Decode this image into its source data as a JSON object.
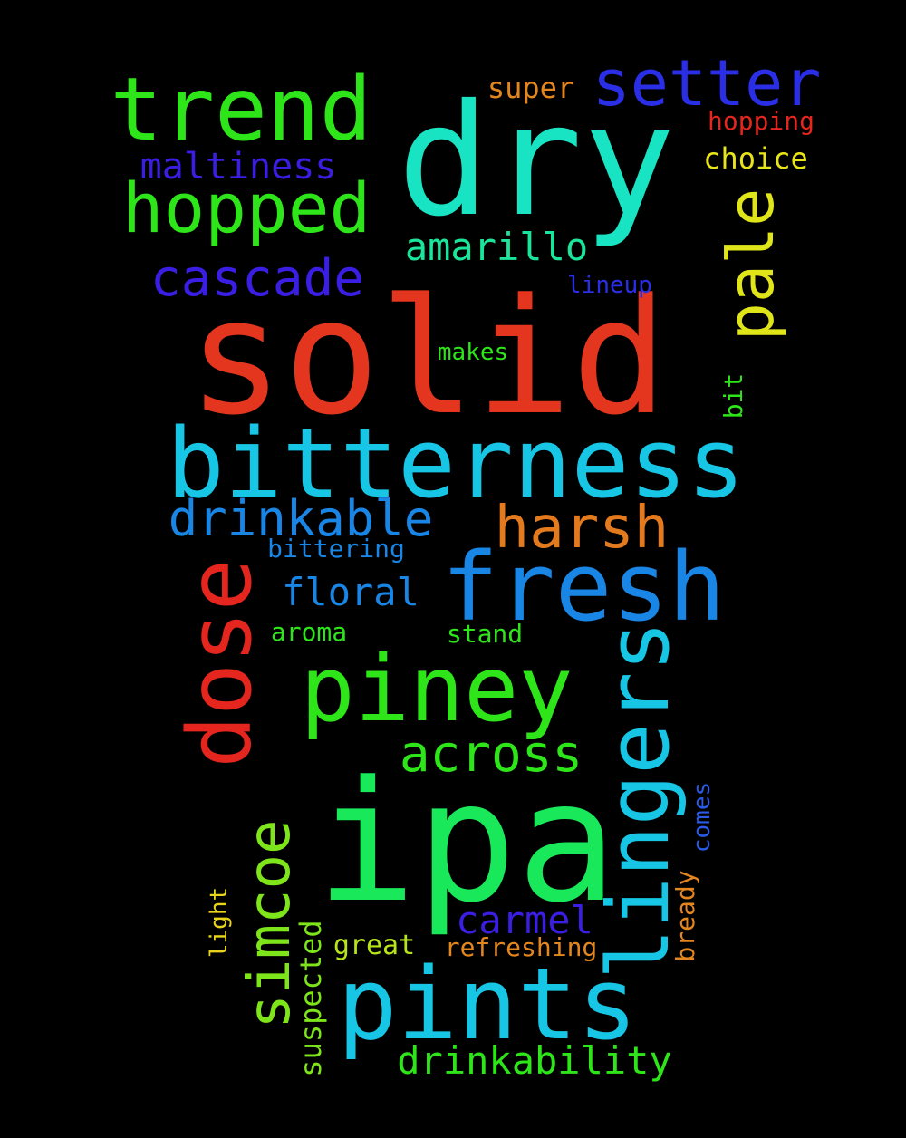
{
  "words": [
    {
      "text": "solid",
      "color": "#e4361e"
    },
    {
      "text": "dry",
      "color": "#18e3c2"
    },
    {
      "text": "ipa",
      "color": "#18e85a"
    },
    {
      "text": "bitterness",
      "color": "#17c6e4"
    },
    {
      "text": "pints",
      "color": "#17c6e4"
    },
    {
      "text": "trend",
      "color": "#2ee51a"
    },
    {
      "text": "fresh",
      "color": "#1985e4"
    },
    {
      "text": "piney",
      "color": "#2ee51a"
    },
    {
      "text": "dose",
      "color": "#e4261e"
    },
    {
      "text": "lingers",
      "color": "#17c6e4"
    },
    {
      "text": "setter",
      "color": "#2a2fe6"
    },
    {
      "text": "hopped",
      "color": "#2ee51a"
    },
    {
      "text": "pale",
      "color": "#e0e51a"
    },
    {
      "text": "harsh",
      "color": "#e47a1e"
    },
    {
      "text": "simcoe",
      "color": "#7ee51a"
    },
    {
      "text": "cascade",
      "color": "#3a1ee4"
    },
    {
      "text": "across",
      "color": "#2ee51a"
    },
    {
      "text": "drinkable",
      "color": "#1985e4"
    },
    {
      "text": "amarillo",
      "color": "#1ae59a"
    },
    {
      "text": "drinkability",
      "color": "#2ee51a"
    },
    {
      "text": "carmel",
      "color": "#3a1ee4"
    },
    {
      "text": "floral",
      "color": "#1985e4"
    },
    {
      "text": "maltiness",
      "color": "#3a1ee4"
    },
    {
      "text": "super",
      "color": "#e4861e"
    },
    {
      "text": "choice",
      "color": "#e8e41a"
    },
    {
      "text": "suspected",
      "color": "#7ee51a"
    },
    {
      "text": "hopping",
      "color": "#e4261e"
    },
    {
      "text": "refreshing",
      "color": "#e4861e"
    },
    {
      "text": "great",
      "color": "#b8e51a"
    },
    {
      "text": "breadу",
      "color": "#e4861e"
    },
    {
      "text": "bittering",
      "color": "#1985e4"
    },
    {
      "text": "stand",
      "color": "#2ee51a"
    },
    {
      "text": "aroma",
      "color": "#2ee51a"
    },
    {
      "text": "comes",
      "color": "#2a5ae6"
    },
    {
      "text": "light",
      "color": "#e8d41a"
    },
    {
      "text": "lineup",
      "color": "#2a2fe6"
    },
    {
      "text": "makes",
      "color": "#2ee51a"
    },
    {
      "text": "bit",
      "color": "#2ee51a"
    }
  ]
}
